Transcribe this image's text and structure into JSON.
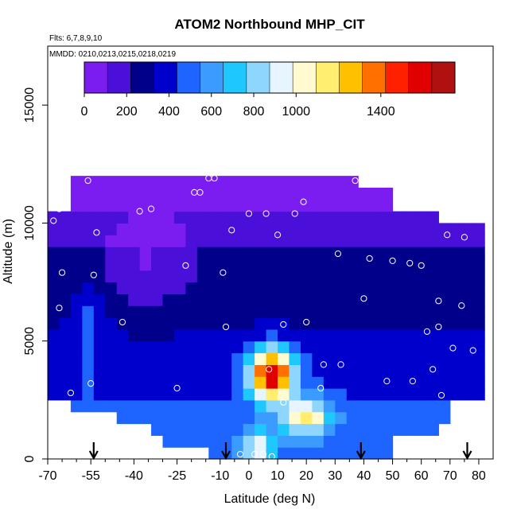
{
  "chart_data": {
    "type": "heatmap",
    "title": "ATOM2 Northbound MHP_CIT",
    "flights_note": "Flts: 6,7,8,9,10",
    "dates_note": "MMDD: 0210,0213,0215,0218,0219",
    "xlabel": "Latitude (deg N)",
    "ylabel": "Altitude (m)",
    "xlim": [
      -70,
      85
    ],
    "ylim": [
      0,
      17500
    ],
    "x_ticks": [
      -70,
      -55,
      -40,
      -25,
      -10,
      0,
      10,
      20,
      30,
      40,
      50,
      60,
      70,
      80
    ],
    "x_tick_labels": [
      "-70",
      "-55",
      "-40",
      "-25",
      "-10",
      "0",
      "10",
      "20",
      "30",
      "40",
      "50",
      "60",
      "70",
      "80"
    ],
    "x_minor_ticks": [
      -65,
      -60,
      -50,
      -45,
      -35,
      -30,
      -20,
      -15,
      -5,
      5,
      15,
      25,
      35,
      45,
      55,
      65,
      75
    ],
    "y_ticks": [
      0,
      5000,
      10000,
      15000
    ],
    "y_tick_labels": [
      "0",
      "5000",
      "10000",
      "15000"
    ],
    "colorbar": {
      "range": [
        0,
        1750
      ],
      "ticks": [
        0,
        200,
        400,
        600,
        800,
        1000,
        1400
      ],
      "tick_labels": [
        "0",
        "200",
        "400",
        "600",
        "800",
        "1000",
        "1400"
      ],
      "colors": [
        "#7b1cf0",
        "#4a0fd8",
        "#00008b",
        "#0000cd",
        "#1e64ff",
        "#3c9bff",
        "#1ec8ff",
        "#8fd6ff",
        "#e6f5ff",
        "#fffad0",
        "#ffee70",
        "#ffc000",
        "#ff7000",
        "#ff2000",
        "#e00000",
        "#b01010"
      ]
    },
    "grid": false,
    "descent_markers_lat": [
      -54,
      -8,
      39,
      76
    ],
    "profile_points": [
      {
        "lat": -56,
        "alt": 11800
      },
      {
        "lat": -66,
        "alt": 10600
      },
      {
        "lat": -68,
        "alt": 10100
      },
      {
        "lat": -38,
        "alt": 10500
      },
      {
        "lat": -34,
        "alt": 10600
      },
      {
        "lat": -19,
        "alt": 11300
      },
      {
        "lat": -17,
        "alt": 11300
      },
      {
        "lat": -14,
        "alt": 11900
      },
      {
        "lat": -12,
        "alt": 11900
      },
      {
        "lat": -53,
        "alt": 9600
      },
      {
        "lat": -6,
        "alt": 9700
      },
      {
        "lat": 0,
        "alt": 10400
      },
      {
        "lat": 6,
        "alt": 10400
      },
      {
        "lat": 16,
        "alt": 10400
      },
      {
        "lat": 19,
        "alt": 10900
      },
      {
        "lat": 37,
        "alt": 11800
      },
      {
        "lat": -65,
        "alt": 7900
      },
      {
        "lat": -54,
        "alt": 7800
      },
      {
        "lat": -22,
        "alt": 8200
      },
      {
        "lat": -9,
        "alt": 7900
      },
      {
        "lat": 10,
        "alt": 9500
      },
      {
        "lat": 31,
        "alt": 8700
      },
      {
        "lat": 42,
        "alt": 8500
      },
      {
        "lat": 50,
        "alt": 8400
      },
      {
        "lat": 56,
        "alt": 8300
      },
      {
        "lat": 60,
        "alt": 8200
      },
      {
        "lat": 69,
        "alt": 9500
      },
      {
        "lat": 75,
        "alt": 9400
      },
      {
        "lat": -66,
        "alt": 6400
      },
      {
        "lat": -44,
        "alt": 5800
      },
      {
        "lat": -8,
        "alt": 5600
      },
      {
        "lat": 12,
        "alt": 5700
      },
      {
        "lat": 20,
        "alt": 5800
      },
      {
        "lat": 40,
        "alt": 6800
      },
      {
        "lat": 66,
        "alt": 6700
      },
      {
        "lat": 74,
        "alt": 6500
      },
      {
        "lat": 62,
        "alt": 5400
      },
      {
        "lat": 66,
        "alt": 5600
      },
      {
        "lat": 71,
        "alt": 4700
      },
      {
        "lat": 78,
        "alt": 4600
      },
      {
        "lat": 7,
        "alt": 3800
      },
      {
        "lat": 26,
        "alt": 4000
      },
      {
        "lat": 32,
        "alt": 4000
      },
      {
        "lat": 48,
        "alt": 3300
      },
      {
        "lat": 57,
        "alt": 3300
      },
      {
        "lat": 64,
        "alt": 3800
      },
      {
        "lat": -62,
        "alt": 2800
      },
      {
        "lat": -55,
        "alt": 3200
      },
      {
        "lat": -25,
        "alt": 3000
      },
      {
        "lat": 25,
        "alt": 3000
      },
      {
        "lat": 67,
        "alt": 2700
      },
      {
        "lat": 12,
        "alt": 2400
      },
      {
        "lat": 73,
        "alt": 2300
      },
      {
        "lat": 56,
        "alt": 400
      },
      {
        "lat": 2,
        "alt": 200
      },
      {
        "lat": -3,
        "alt": 200
      },
      {
        "lat": 5,
        "alt": 200
      },
      {
        "lat": 8,
        "alt": 100
      }
    ],
    "field_description_grid": {
      "lat_bins": [
        -68,
        -64,
        -60,
        -56,
        -52,
        -48,
        -44,
        -40,
        -36,
        -32,
        -28,
        -24,
        -20,
        -16,
        -12,
        -8,
        -4,
        0,
        4,
        8,
        12,
        16,
        20,
        24,
        28,
        32,
        36,
        40,
        44,
        48,
        52,
        56,
        60,
        64,
        68,
        72,
        76,
        80
      ],
      "alt_bins": [
        250,
        750,
        1250,
        1750,
        2250,
        2750,
        3250,
        3750,
        4250,
        4750,
        5250,
        5750,
        6250,
        6750,
        7250,
        7750,
        8250,
        8750,
        9250,
        9750,
        10250,
        10750,
        11250,
        11750
      ]
    }
  }
}
